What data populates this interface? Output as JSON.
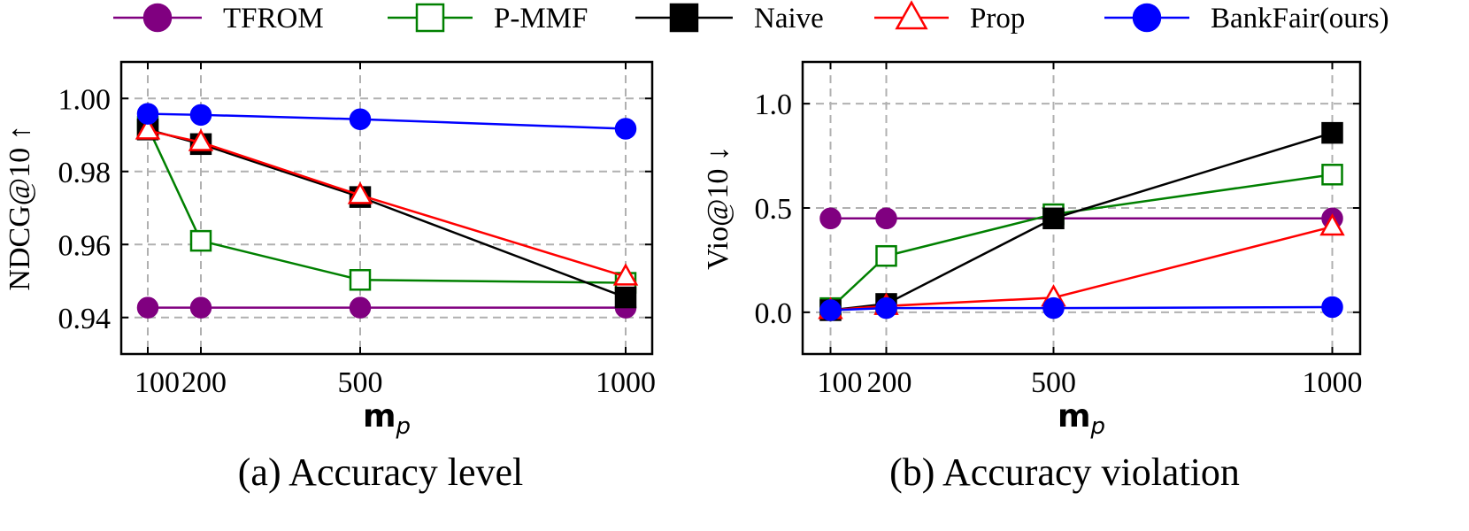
{
  "legend": {
    "entries": [
      {
        "name": "TFROM",
        "color": "#800080",
        "marker": "circle",
        "fill": "filled"
      },
      {
        "name": "P-MMF",
        "color": "#008000",
        "marker": "square",
        "fill": "hollow"
      },
      {
        "name": "Naive",
        "color": "#000000",
        "marker": "square",
        "fill": "filled"
      },
      {
        "name": "Prop",
        "color": "#ff0000",
        "marker": "triangle",
        "fill": "hollow"
      },
      {
        "name": "BankFair(ours)",
        "color": "#0000ff",
        "marker": "circle",
        "fill": "filled"
      }
    ],
    "placement": "top"
  },
  "chart_data": [
    {
      "type": "line",
      "caption": "(a) Accuracy level",
      "xlabel": "m",
      "xlabel_sub": "p",
      "ylabel": "NDCG@10 ↑",
      "x": [
        100,
        200,
        500,
        1000
      ],
      "xticks": [
        100,
        200,
        500,
        1000
      ],
      "xtick_labels": [
        "100",
        "200",
        "500",
        "1000"
      ],
      "yticks": [
        0.94,
        0.96,
        0.98,
        1.0
      ],
      "ytick_labels": [
        "0.94",
        "0.96",
        "0.98",
        "1.00"
      ],
      "xlim": [
        50,
        1050
      ],
      "ylim": [
        0.93,
        1.01
      ],
      "grid": true,
      "series": [
        {
          "name": "TFROM",
          "values": [
            0.9427,
            0.9427,
            0.9427,
            0.9427
          ]
        },
        {
          "name": "P-MMF",
          "values": [
            0.9922,
            0.961,
            0.9503,
            0.9495
          ]
        },
        {
          "name": "Naive",
          "values": [
            0.9915,
            0.9875,
            0.973,
            0.9455
          ]
        },
        {
          "name": "Prop",
          "values": [
            0.9912,
            0.988,
            0.9735,
            0.9512
          ]
        },
        {
          "name": "BankFair(ours)",
          "values": [
            0.9958,
            0.9955,
            0.9943,
            0.9917
          ]
        }
      ]
    },
    {
      "type": "line",
      "caption": "(b) Accuracy violation",
      "xlabel": "m",
      "xlabel_sub": "p",
      "ylabel": "Vio@10 ↓",
      "x": [
        100,
        200,
        500,
        1000
      ],
      "xticks": [
        100,
        200,
        500,
        1000
      ],
      "xtick_labels": [
        "100",
        "200",
        "500",
        "1000"
      ],
      "yticks": [
        0.0,
        0.5,
        1.0
      ],
      "ytick_labels": [
        "0.0",
        "0.5",
        "1.0"
      ],
      "xlim": [
        50,
        1050
      ],
      "ylim": [
        -0.2,
        1.2
      ],
      "grid": true,
      "series": [
        {
          "name": "TFROM",
          "values": [
            0.45,
            0.45,
            0.45,
            0.45
          ]
        },
        {
          "name": "P-MMF",
          "values": [
            0.02,
            0.27,
            0.47,
            0.66
          ]
        },
        {
          "name": "Naive",
          "values": [
            0.01,
            0.04,
            0.45,
            0.86
          ]
        },
        {
          "name": "Prop",
          "values": [
            0.01,
            0.03,
            0.07,
            0.41
          ]
        },
        {
          "name": "BankFair(ours)",
          "values": [
            0.01,
            0.02,
            0.02,
            0.025
          ]
        }
      ]
    }
  ]
}
